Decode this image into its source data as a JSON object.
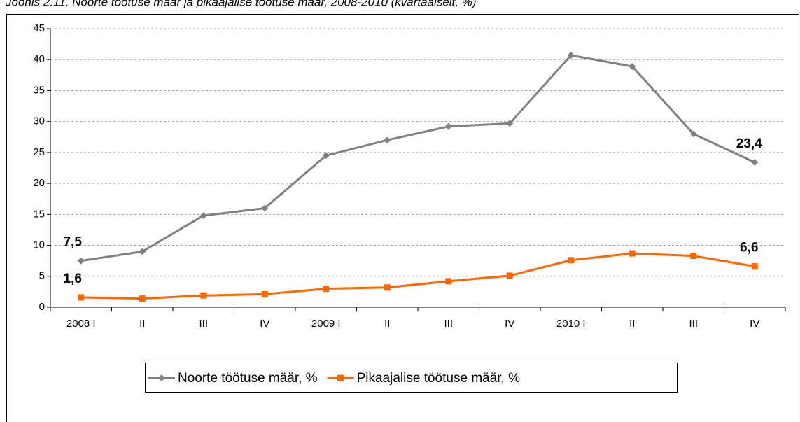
{
  "chart_data": {
    "type": "line",
    "title": "Joonis 2.11. Noorte töötuse määr ja pikaajalise töötuse määr, 2008-2010 (kvartaalselt, %)",
    "categories": [
      "2008 I",
      "II",
      "III",
      "IV",
      "2009 I",
      "II",
      "III",
      "IV",
      "2010 I",
      "II",
      "III",
      "IV"
    ],
    "series": [
      {
        "name": "Noorte töötuse määr, %",
        "color": "#808080",
        "marker": "diamond",
        "values": [
          7.5,
          9.0,
          14.8,
          16.0,
          24.5,
          27.0,
          29.2,
          29.7,
          40.7,
          38.9,
          28.0,
          23.4
        ],
        "value_labels": [
          "7,5",
          null,
          null,
          null,
          null,
          null,
          null,
          null,
          null,
          null,
          null,
          "23,4"
        ]
      },
      {
        "name": "Pikaajalise töötuse määr, %",
        "color": "#ff6600",
        "marker": "square",
        "values": [
          1.6,
          1.4,
          1.9,
          2.1,
          3.0,
          3.2,
          4.2,
          5.1,
          7.6,
          8.7,
          8.3,
          6.6
        ],
        "value_labels": [
          "1,6",
          null,
          null,
          null,
          null,
          null,
          null,
          null,
          null,
          null,
          null,
          "6,6"
        ]
      }
    ],
    "ylim": [
      0,
      45
    ],
    "yticks": [
      0,
      5,
      10,
      15,
      20,
      25,
      30,
      35,
      40,
      45
    ],
    "grid": true,
    "legend": "bottom"
  }
}
